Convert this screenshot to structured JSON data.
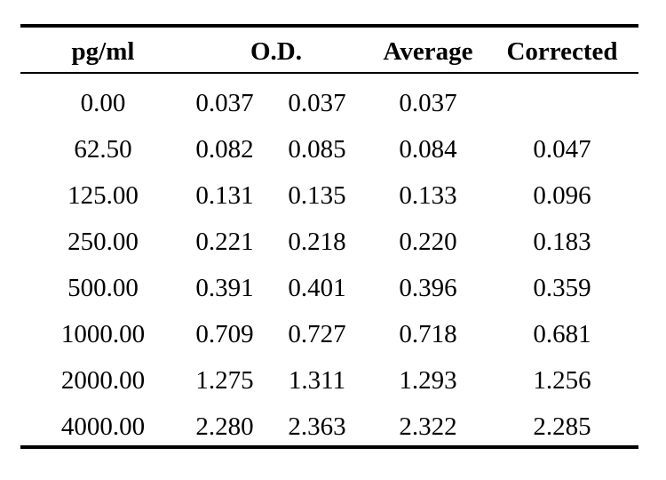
{
  "chart_data": {
    "type": "table",
    "columns": [
      "pg/ml",
      "O.D.",
      "Average",
      "Corrected"
    ],
    "rows": [
      {
        "concentration": "0.00",
        "od1": "0.037",
        "od2": "0.037",
        "average": "0.037",
        "corrected": ""
      },
      {
        "concentration": "62.50",
        "od1": "0.082",
        "od2": "0.085",
        "average": "0.084",
        "corrected": "0.047"
      },
      {
        "concentration": "125.00",
        "od1": "0.131",
        "od2": "0.135",
        "average": "0.133",
        "corrected": "0.096"
      },
      {
        "concentration": "250.00",
        "od1": "0.221",
        "od2": "0.218",
        "average": "0.220",
        "corrected": "0.183"
      },
      {
        "concentration": "500.00",
        "od1": "0.391",
        "od2": "0.401",
        "average": "0.396",
        "corrected": "0.359"
      },
      {
        "concentration": "1000.00",
        "od1": "0.709",
        "od2": "0.727",
        "average": "0.718",
        "corrected": "0.681"
      },
      {
        "concentration": "2000.00",
        "od1": "1.275",
        "od2": "1.311",
        "average": "1.293",
        "corrected": "1.256"
      },
      {
        "concentration": "4000.00",
        "od1": "2.280",
        "od2": "2.363",
        "average": "2.322",
        "corrected": "2.285"
      }
    ]
  }
}
